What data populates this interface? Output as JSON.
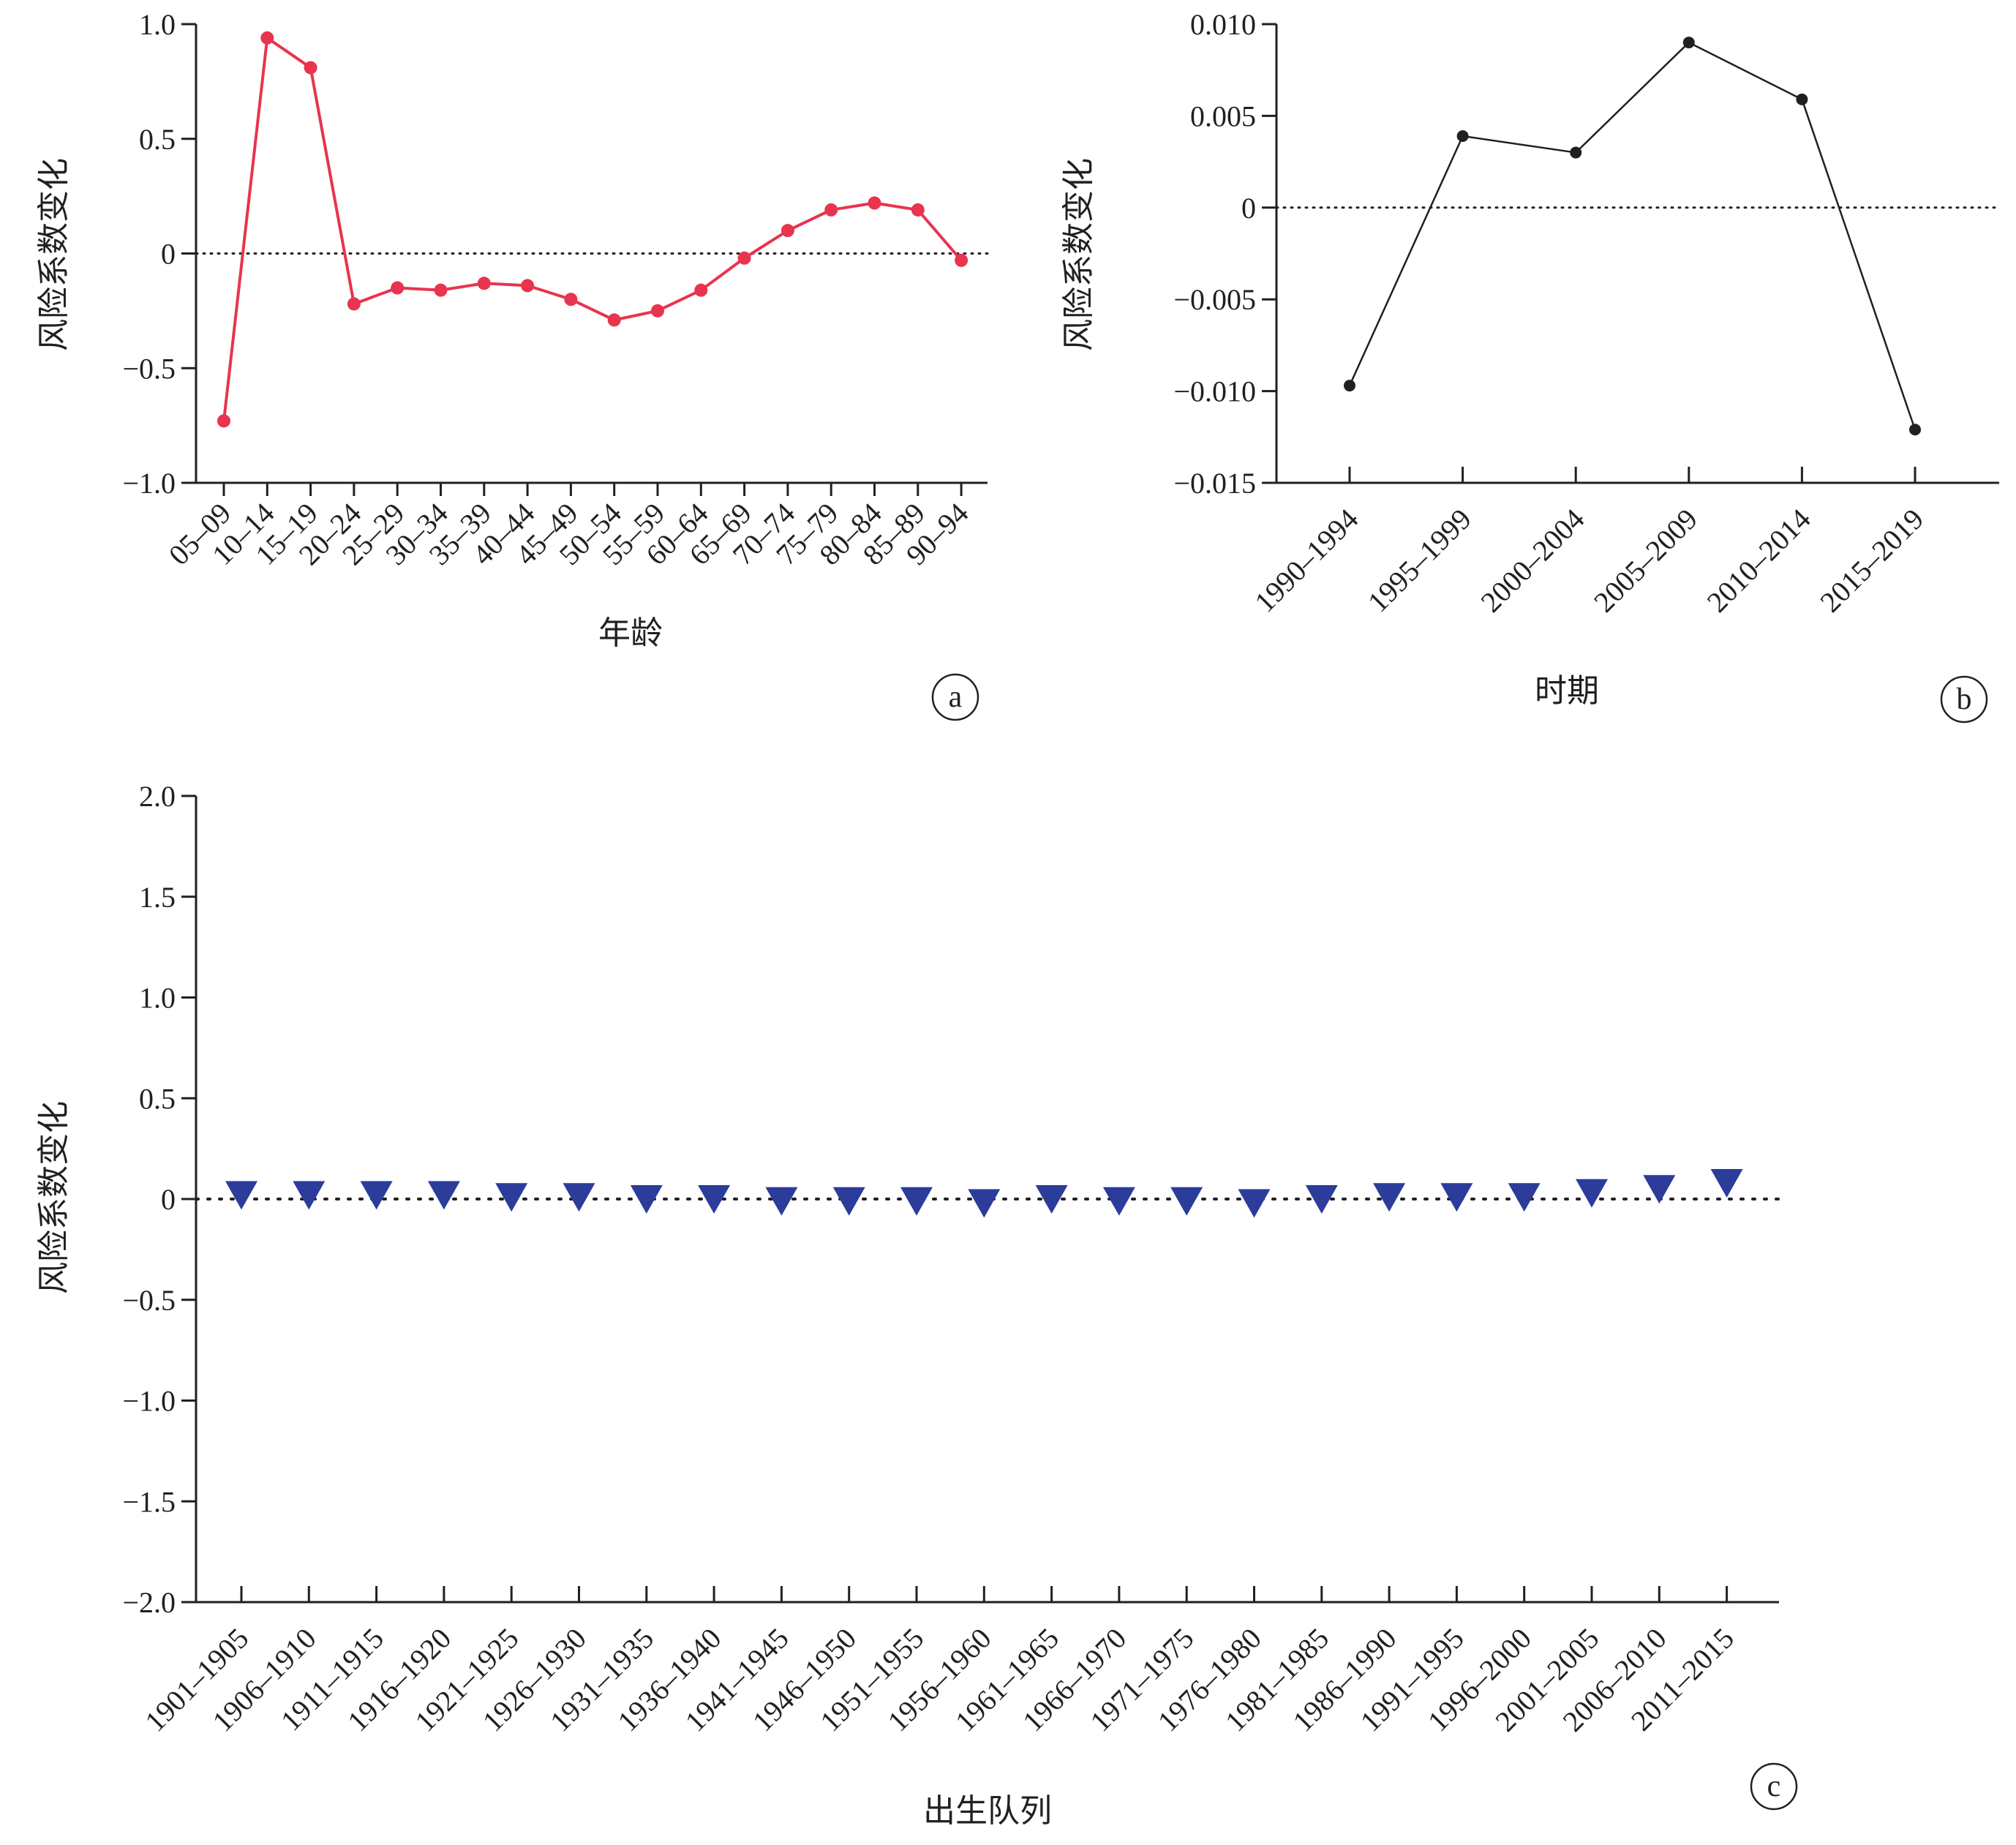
{
  "chart_data": [
    {
      "id": "a",
      "type": "line",
      "panel_label": "a",
      "xlabel": "年龄",
      "ylabel": "风险系数变化",
      "ylim": [
        -1.0,
        1.0
      ],
      "yticks": [
        1.0,
        0.5,
        0,
        -0.5,
        -1.0
      ],
      "ytick_labels": [
        "1.0",
        "0.5",
        "0",
        "−0.5",
        "−1.0"
      ],
      "categories": [
        "05–09",
        "10–14",
        "15–19",
        "20–24",
        "25–29",
        "30–34",
        "35–39",
        "40–44",
        "45–49",
        "50–54",
        "55–59",
        "60–64",
        "65–69",
        "70–74",
        "75–79",
        "80–84",
        "85–89",
        "90–94"
      ],
      "values": [
        -0.73,
        0.94,
        0.81,
        -0.22,
        -0.15,
        -0.16,
        -0.13,
        -0.14,
        -0.2,
        -0.29,
        -0.25,
        -0.16,
        -0.02,
        0.1,
        0.19,
        0.22,
        0.19,
        -0.03
      ],
      "reference_line": 0,
      "color": "#e8344e",
      "marker": "circle",
      "grid": false
    },
    {
      "id": "b",
      "type": "line",
      "panel_label": "b",
      "xlabel": "时期",
      "ylabel": "风险系数变化",
      "ylim": [
        -0.015,
        0.01
      ],
      "yticks": [
        0.01,
        0.005,
        0,
        -0.005,
        -0.01,
        -0.015
      ],
      "ytick_labels": [
        "0.010",
        "0.005",
        "0",
        "−0.005",
        "−0.010",
        "−0.015"
      ],
      "categories": [
        "1990–1994",
        "1995–1999",
        "2000–2004",
        "2005–2009",
        "2010–2014",
        "2015–2019"
      ],
      "values": [
        -0.0097,
        0.0039,
        0.003,
        0.009,
        0.0059,
        -0.0121
      ],
      "reference_line": 0,
      "color": "#231f20",
      "marker": "circle",
      "grid": false
    },
    {
      "id": "c",
      "type": "scatter",
      "panel_label": "c",
      "xlabel": "出生队列",
      "ylabel": "风险系数变化",
      "ylim": [
        -2.0,
        2.0
      ],
      "yticks": [
        2.0,
        1.5,
        1.0,
        0.5,
        0,
        -0.5,
        -1.0,
        -1.5,
        -2.0
      ],
      "ytick_labels": [
        "2.0",
        "1.5",
        "1.0",
        "0.5",
        "0",
        "−0.5",
        "−1.0",
        "−1.5",
        "−2.0"
      ],
      "categories": [
        "1901–1905",
        "1906–1910",
        "1911–1915",
        "1916–1920",
        "1921–1925",
        "1926–1930",
        "1931–1935",
        "1936–1940",
        "1941–1945",
        "1946–1950",
        "1951–1955",
        "1956–1960",
        "1961–1965",
        "1966–1970",
        "1971–1975",
        "1976–1980",
        "1981–1985",
        "1986–1990",
        "1991–1995",
        "1996–2000",
        "2001–2005",
        "2006–2010",
        "2011–2015"
      ],
      "values": [
        0.02,
        0.02,
        0.02,
        0.02,
        0.01,
        0.01,
        0.0,
        0.0,
        -0.01,
        -0.01,
        -0.01,
        -0.02,
        0.0,
        -0.01,
        -0.01,
        -0.02,
        0.0,
        0.01,
        0.01,
        0.01,
        0.03,
        0.05,
        0.08
      ],
      "reference_line": 0,
      "color": "#2b3c9b",
      "marker": "triangle-down",
      "grid": false
    }
  ]
}
